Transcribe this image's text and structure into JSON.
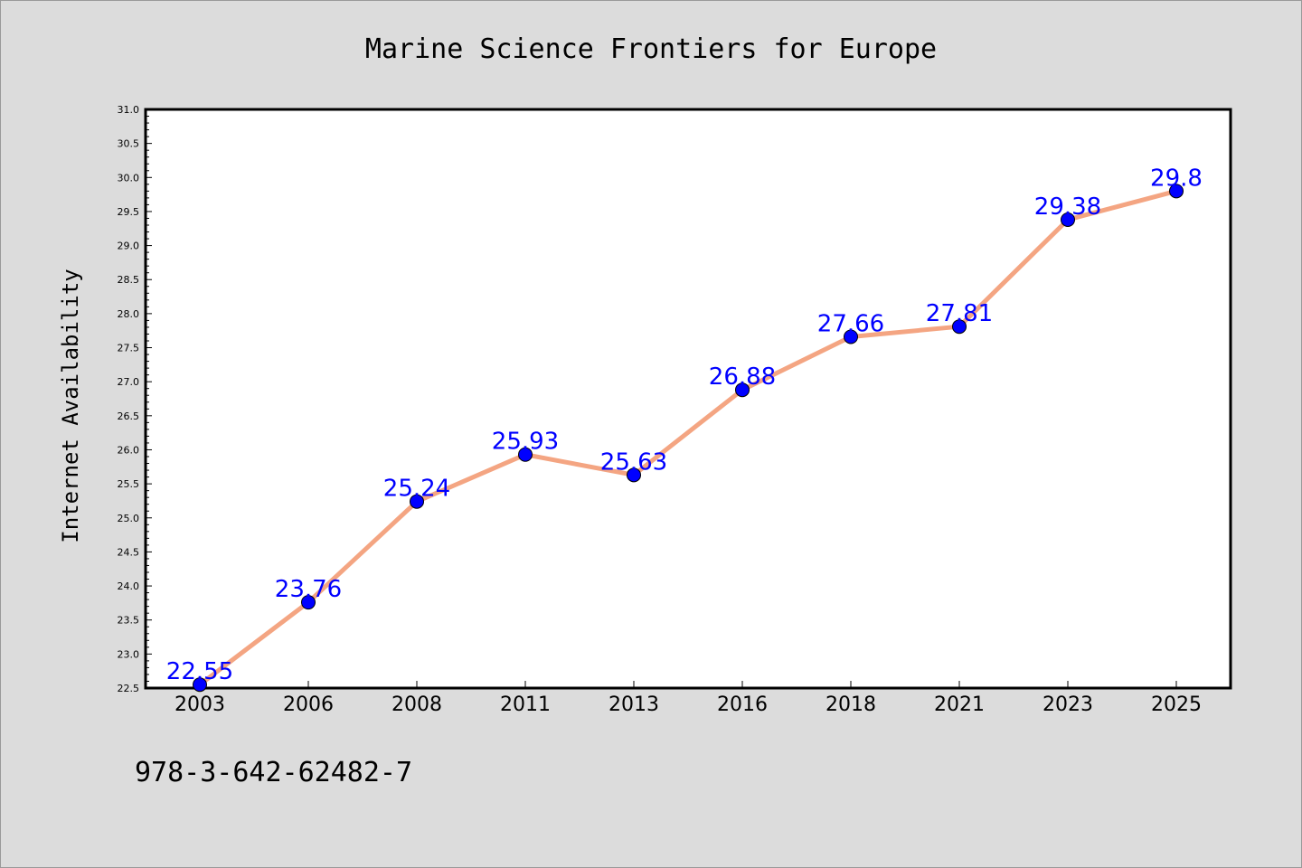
{
  "chart_data": {
    "type": "line",
    "title": "Marine Science Frontiers for Europe",
    "xlabel": "",
    "ylabel": "Internet Availability",
    "categories": [
      "2003",
      "2006",
      "2008",
      "2011",
      "2013",
      "2016",
      "2018",
      "2021",
      "2023",
      "2025"
    ],
    "series": [
      {
        "values": [
          22.55,
          23.76,
          25.24,
          25.93,
          25.63,
          26.88,
          27.66,
          27.81,
          29.38,
          29.8
        ],
        "labels": [
          "22.55",
          "23.76",
          "25.24",
          "25.93",
          "25.63",
          "26.88",
          "27.66",
          "27.81",
          "29.38",
          "29.8"
        ]
      }
    ],
    "ylim": [
      22.5,
      31.0
    ],
    "yticks": [
      "22.5",
      "23.0",
      "23.5",
      "24.0",
      "24.5",
      "25.0",
      "25.5",
      "26.0",
      "26.5",
      "27.0",
      "27.5",
      "28.0",
      "28.5",
      "29.0",
      "29.5",
      "30.0",
      "30.5",
      "31.0"
    ],
    "grid": false,
    "legend": "none",
    "colors": {
      "line": "#f4a582",
      "marker": "#0000ff",
      "data_label": "#0000ff",
      "background": "#dcdcdc",
      "plot_background": "#ffffff"
    }
  },
  "footer": {
    "isbn": "978-3-642-62482-7"
  }
}
